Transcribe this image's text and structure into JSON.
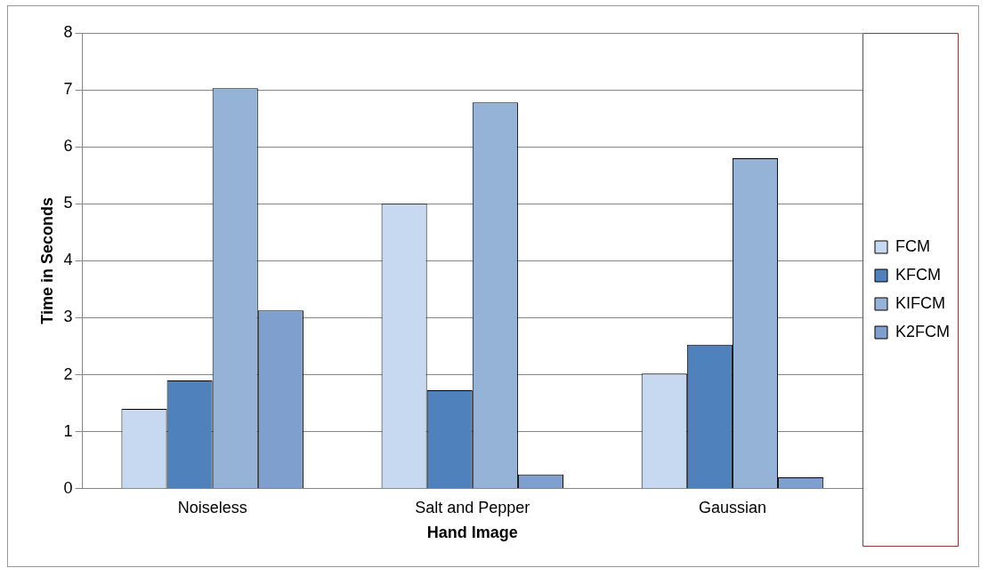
{
  "chart_data": {
    "type": "bar",
    "xlabel": "Hand Image",
    "ylabel": "Time in Seconds",
    "categories": [
      "Noiseless",
      "Salt and Pepper",
      "Gaussian"
    ],
    "series": [
      {
        "name": "FCM",
        "color": "#c6d9f1",
        "values": [
          1.4,
          5.0,
          2.02
        ]
      },
      {
        "name": "KFCM",
        "color": "#4f81bd",
        "values": [
          1.9,
          1.73,
          2.53
        ]
      },
      {
        "name": "KIFCM",
        "color": "#95b3d7",
        "values": [
          7.03,
          6.78,
          5.8
        ]
      },
      {
        "name": "K2FCM",
        "color": "#7f9fcf",
        "values": [
          3.13,
          0.25,
          0.2
        ]
      }
    ],
    "ylim": [
      0,
      8
    ],
    "yticks": [
      0,
      1,
      2,
      3,
      4,
      5,
      6,
      7,
      8
    ],
    "grid": "y",
    "legend": "right"
  }
}
